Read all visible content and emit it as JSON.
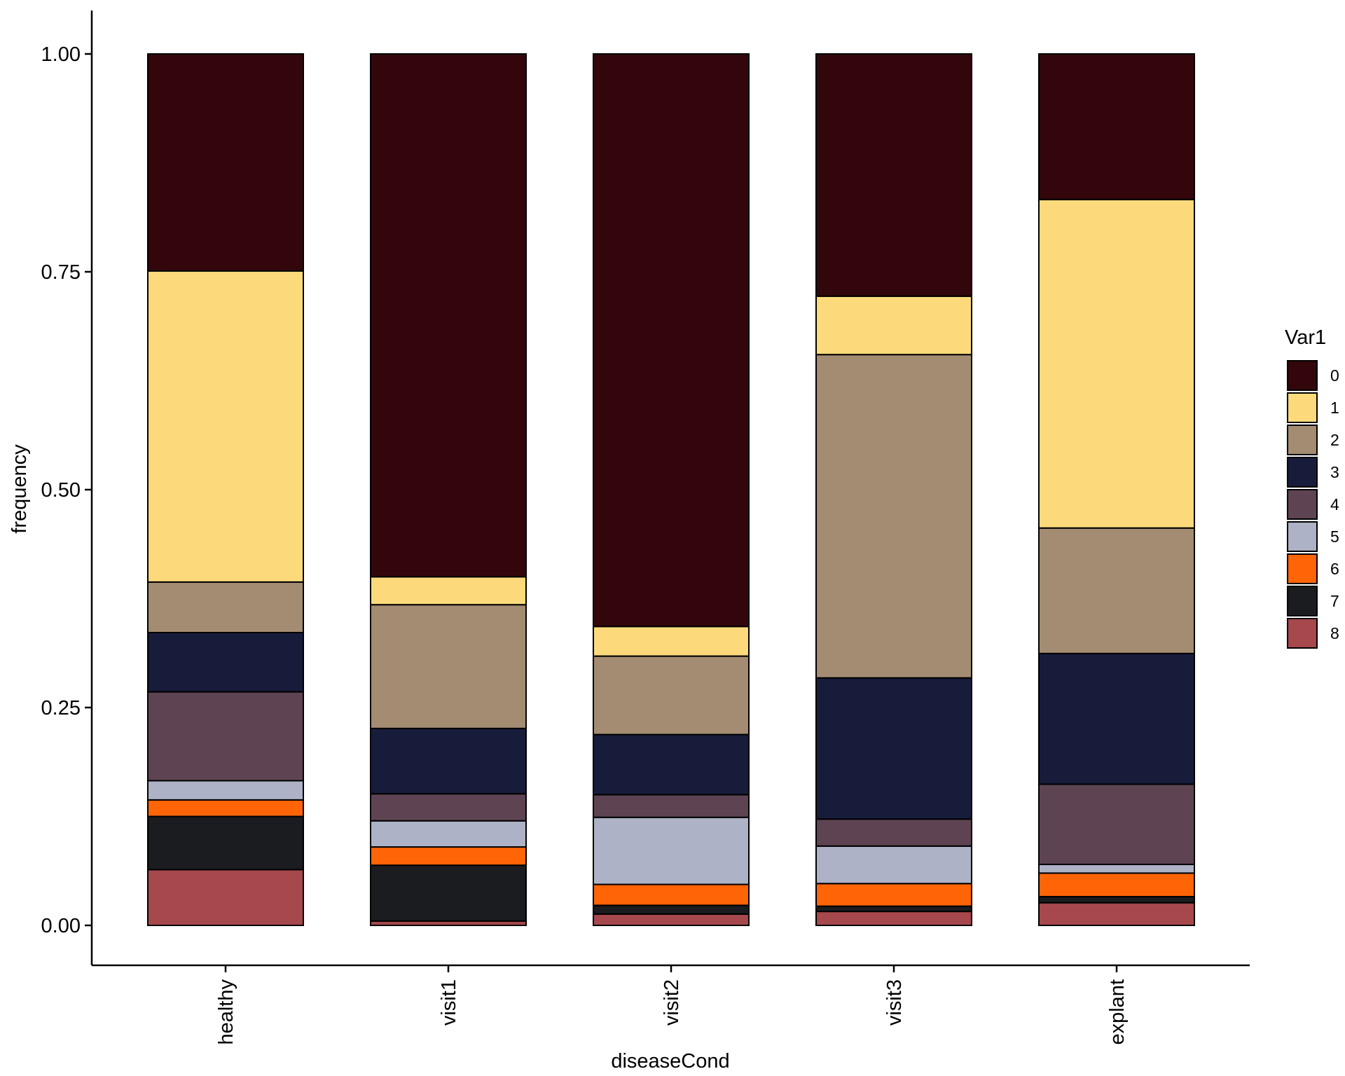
{
  "chart_data": {
    "type": "bar",
    "stacked": true,
    "title": "",
    "xlabel": "diseaseCond",
    "ylabel": "frequency",
    "ylim": [
      -0.05,
      1.05
    ],
    "yticks": [
      "0.00",
      "0.25",
      "0.50",
      "0.75",
      "1.00"
    ],
    "grid": false,
    "legend": {
      "title": "Var1",
      "position": "right"
    },
    "categories": [
      "healthy",
      "visit1",
      "visit2",
      "visit3",
      "explant"
    ],
    "series": [
      {
        "name": "0",
        "color": "#33060C",
        "values": [
          0.249,
          0.6,
          0.657,
          0.278,
          0.167
        ]
      },
      {
        "name": "1",
        "color": "#FCDA7C",
        "values": [
          0.357,
          0.032,
          0.034,
          0.067,
          0.377
        ]
      },
      {
        "name": "2",
        "color": "#A38C72",
        "values": [
          0.058,
          0.142,
          0.09,
          0.371,
          0.144
        ]
      },
      {
        "name": "3",
        "color": "#181C3B",
        "values": [
          0.068,
          0.075,
          0.069,
          0.162,
          0.15
        ]
      },
      {
        "name": "4",
        "color": "#5E4452",
        "values": [
          0.102,
          0.031,
          0.026,
          0.031,
          0.092
        ]
      },
      {
        "name": "5",
        "color": "#ADB2C6",
        "values": [
          0.022,
          0.03,
          0.077,
          0.043,
          0.01
        ]
      },
      {
        "name": "6",
        "color": "#FF6407",
        "values": [
          0.019,
          0.021,
          0.024,
          0.026,
          0.027
        ]
      },
      {
        "name": "7",
        "color": "#1B1C1F",
        "values": [
          0.061,
          0.064,
          0.01,
          0.006,
          0.007
        ]
      },
      {
        "name": "8",
        "color": "#A6484C",
        "values": [
          0.064,
          0.005,
          0.013,
          0.016,
          0.026
        ]
      }
    ]
  }
}
